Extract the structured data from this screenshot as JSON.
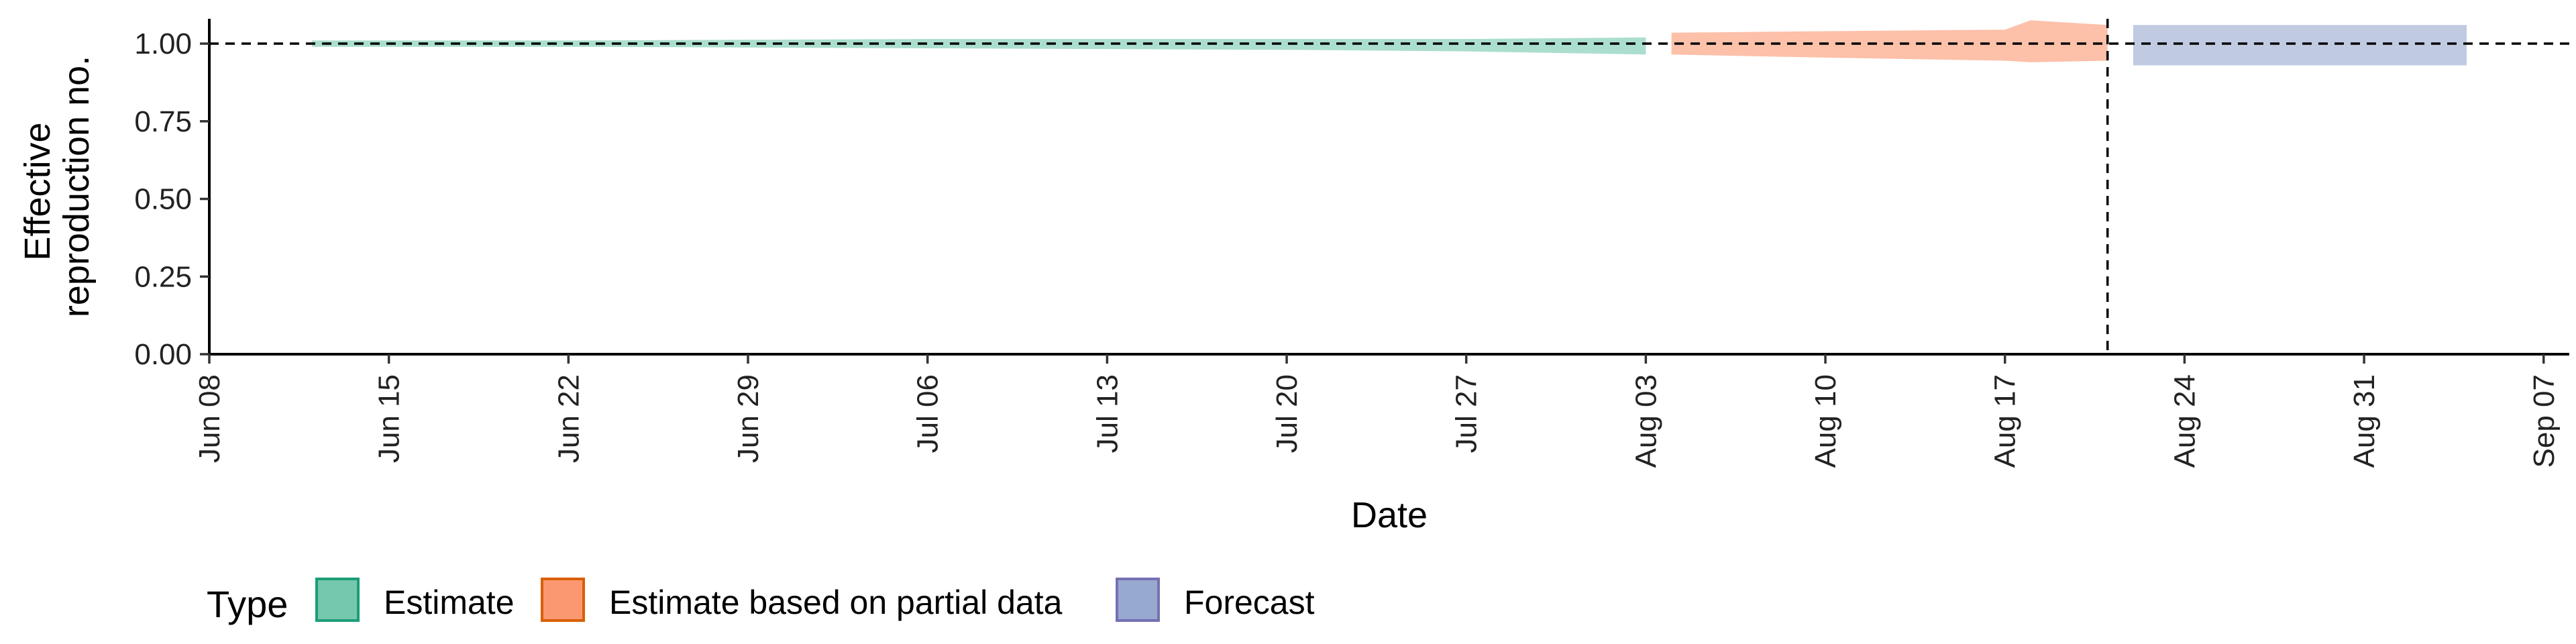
{
  "chart_data": {
    "type": "area",
    "xlabel": "Date",
    "ylabel_lines": [
      "Effective",
      "reproduction no."
    ],
    "x_ticks": [
      "Jun 08",
      "Jun 15",
      "Jun 22",
      "Jun 29",
      "Jul 06",
      "Jul 13",
      "Jul 20",
      "Jul 27",
      "Aug 03",
      "Aug 10",
      "Aug 17",
      "Aug 24",
      "Aug 31",
      "Sep 07"
    ],
    "x_tick_dates": [
      "2020-06-08",
      "2020-06-15",
      "2020-06-22",
      "2020-06-29",
      "2020-07-06",
      "2020-07-13",
      "2020-07-20",
      "2020-07-27",
      "2020-08-03",
      "2020-08-10",
      "2020-08-17",
      "2020-08-24",
      "2020-08-31",
      "2020-09-07"
    ],
    "xlim": [
      "2020-06-08",
      "2020-09-08"
    ],
    "y_ticks": [
      "0.00",
      "0.25",
      "0.50",
      "0.75",
      "1.00"
    ],
    "ylim": [
      0,
      1.08
    ],
    "reference_line_y": 1.0,
    "forecast_start_date": "2020-08-21",
    "legend": {
      "title": "Type",
      "position": "bottom-left",
      "entries": [
        "Estimate",
        "Estimate based on partial data",
        "Forecast"
      ]
    },
    "colors": {
      "Estimate": "#66c2a5",
      "Estimate based on partial data": "#fc8d62",
      "Forecast": "#8da0cb",
      "Estimate_border": "#1b9e77",
      "Estimate based on partial data_border": "#d95f02",
      "Forecast_border": "#7570b3"
    },
    "series": [
      {
        "name": "Estimate",
        "x": [
          "2020-06-12",
          "2020-06-22",
          "2020-07-06",
          "2020-07-20",
          "2020-07-27",
          "2020-08-03"
        ],
        "lower": [
          0.99,
          0.99,
          0.985,
          0.98,
          0.975,
          0.965
        ],
        "upper": [
          1.01,
          1.01,
          1.015,
          1.015,
          1.015,
          1.02
        ]
      },
      {
        "name": "Estimate based on partial data",
        "x": [
          "2020-08-04",
          "2020-08-10",
          "2020-08-17",
          "2020-08-18",
          "2020-08-21"
        ],
        "lower": [
          0.965,
          0.955,
          0.945,
          0.94,
          0.945
        ],
        "upper": [
          1.035,
          1.04,
          1.045,
          1.075,
          1.06
        ]
      },
      {
        "name": "Forecast",
        "x": [
          "2020-08-22",
          "2020-09-04"
        ],
        "lower": [
          0.93,
          0.93
        ],
        "upper": [
          1.06,
          1.06
        ]
      }
    ]
  }
}
